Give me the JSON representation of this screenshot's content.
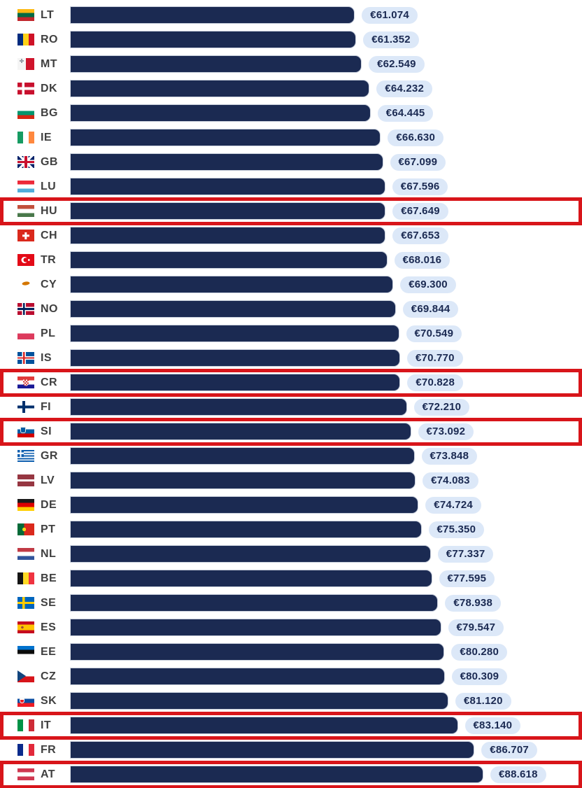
{
  "chart_data": {
    "type": "bar",
    "orientation": "horizontal",
    "title": "",
    "unit": "EUR",
    "xlim": [
      0,
      88618
    ],
    "grid": false,
    "legend": false,
    "categories": [
      "LT",
      "RO",
      "MT",
      "DK",
      "BG",
      "IE",
      "GB",
      "LU",
      "HU",
      "CH",
      "TR",
      "CY",
      "NO",
      "PL",
      "IS",
      "CR",
      "FI",
      "SI",
      "GR",
      "LV",
      "DE",
      "PT",
      "NL",
      "BE",
      "SE",
      "ES",
      "EE",
      "CZ",
      "SK",
      "IT",
      "FR",
      "AT"
    ],
    "values": [
      61074,
      61352,
      62549,
      64232,
      64445,
      66630,
      67099,
      67596,
      67649,
      67653,
      68016,
      69300,
      69844,
      70549,
      70770,
      70828,
      72210,
      73092,
      73848,
      74083,
      74724,
      75350,
      77337,
      77595,
      78938,
      79547,
      80280,
      80309,
      81120,
      83140,
      86707,
      88618
    ],
    "highlighted_codes": [
      "HU",
      "CR",
      "SI",
      "IT",
      "AT"
    ],
    "colors": {
      "bar": "#1b2a52",
      "badge_bg": "#dce8f8",
      "badge_text": "#1b2a52",
      "highlight_box": "#d8151a",
      "code_text": "#404040"
    },
    "rows": [
      {
        "code": "LT",
        "flag": "lt",
        "value": 61074,
        "label": "€61.074",
        "highlighted": false
      },
      {
        "code": "RO",
        "flag": "ro",
        "value": 61352,
        "label": "€61.352",
        "highlighted": false
      },
      {
        "code": "MT",
        "flag": "mt",
        "value": 62549,
        "label": "€62.549",
        "highlighted": false
      },
      {
        "code": "DK",
        "flag": "dk",
        "value": 64232,
        "label": "€64.232",
        "highlighted": false
      },
      {
        "code": "BG",
        "flag": "bg",
        "value": 64445,
        "label": "€64.445",
        "highlighted": false
      },
      {
        "code": "IE",
        "flag": "ie",
        "value": 66630,
        "label": "€66.630",
        "highlighted": false
      },
      {
        "code": "GB",
        "flag": "gb",
        "value": 67099,
        "label": "€67.099",
        "highlighted": false
      },
      {
        "code": "LU",
        "flag": "lu",
        "value": 67596,
        "label": "€67.596",
        "highlighted": false
      },
      {
        "code": "HU",
        "flag": "hu",
        "value": 67649,
        "label": "€67.649",
        "highlighted": true
      },
      {
        "code": "CH",
        "flag": "ch",
        "value": 67653,
        "label": "€67.653",
        "highlighted": false
      },
      {
        "code": "TR",
        "flag": "tr",
        "value": 68016,
        "label": "€68.016",
        "highlighted": false
      },
      {
        "code": "CY",
        "flag": "cy",
        "value": 69300,
        "label": "€69.300",
        "highlighted": false
      },
      {
        "code": "NO",
        "flag": "no",
        "value": 69844,
        "label": "€69.844",
        "highlighted": false
      },
      {
        "code": "PL",
        "flag": "pl",
        "value": 70549,
        "label": "€70.549",
        "highlighted": false
      },
      {
        "code": "IS",
        "flag": "is",
        "value": 70770,
        "label": "€70.770",
        "highlighted": false
      },
      {
        "code": "CR",
        "flag": "cr",
        "value": 70828,
        "label": "€70.828",
        "highlighted": true
      },
      {
        "code": "FI",
        "flag": "fi",
        "value": 72210,
        "label": "€72.210",
        "highlighted": false
      },
      {
        "code": "SI",
        "flag": "si",
        "value": 73092,
        "label": "€73.092",
        "highlighted": true
      },
      {
        "code": "GR",
        "flag": "gr",
        "value": 73848,
        "label": "€73.848",
        "highlighted": false
      },
      {
        "code": "LV",
        "flag": "lv",
        "value": 74083,
        "label": "€74.083",
        "highlighted": false
      },
      {
        "code": "DE",
        "flag": "de",
        "value": 74724,
        "label": "€74.724",
        "highlighted": false
      },
      {
        "code": "PT",
        "flag": "pt",
        "value": 75350,
        "label": "€75.350",
        "highlighted": false
      },
      {
        "code": "NL",
        "flag": "nl",
        "value": 77337,
        "label": "€77.337",
        "highlighted": false
      },
      {
        "code": "BE",
        "flag": "be",
        "value": 77595,
        "label": "€77.595",
        "highlighted": false
      },
      {
        "code": "SE",
        "flag": "se",
        "value": 78938,
        "label": "€78.938",
        "highlighted": false
      },
      {
        "code": "ES",
        "flag": "es",
        "value": 79547,
        "label": "€79.547",
        "highlighted": false
      },
      {
        "code": "EE",
        "flag": "ee",
        "value": 80280,
        "label": "€80.280",
        "highlighted": false
      },
      {
        "code": "CZ",
        "flag": "cz",
        "value": 80309,
        "label": "€80.309",
        "highlighted": false
      },
      {
        "code": "SK",
        "flag": "sk",
        "value": 81120,
        "label": "€81.120",
        "highlighted": false
      },
      {
        "code": "IT",
        "flag": "it",
        "value": 83140,
        "label": "€83.140",
        "highlighted": true
      },
      {
        "code": "FR",
        "flag": "fr",
        "value": 86707,
        "label": "€86.707",
        "highlighted": false
      },
      {
        "code": "AT",
        "flag": "at",
        "value": 88618,
        "label": "€88.618",
        "highlighted": true
      }
    ]
  }
}
